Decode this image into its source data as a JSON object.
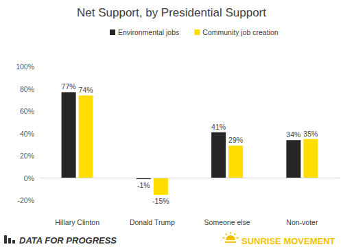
{
  "chart_data": {
    "type": "bar",
    "title": "Net Support, by Presidential Support",
    "categories": [
      "Hillary Clinton",
      "Donald Trump",
      "Someone else",
      "Non-voter"
    ],
    "series": [
      {
        "name": "Environmental jobs",
        "color": "#262626",
        "values": [
          77,
          -1,
          41,
          34
        ],
        "value_labels": [
          "77%",
          "-1%",
          "41%",
          "34%"
        ]
      },
      {
        "name": "Community job creation",
        "color": "#FFDD00",
        "values": [
          74,
          -15,
          29,
          35
        ],
        "value_labels": [
          "74%",
          "-15%",
          "29%",
          "35%"
        ]
      }
    ],
    "ylim": [
      -20,
      100
    ],
    "yticks": [
      {
        "value": -20,
        "label": "-20%"
      },
      {
        "value": 0,
        "label": "0%"
      },
      {
        "value": 20,
        "label": "20%"
      },
      {
        "value": 40,
        "label": "40%"
      },
      {
        "value": 60,
        "label": "60%"
      },
      {
        "value": 80,
        "label": "80%"
      },
      {
        "value": 100,
        "label": "100%"
      }
    ],
    "grid": false,
    "legend": "top",
    "data_labels": true,
    "annotations": [
      "DATA FOR PROGRESS",
      "SUNRISE MOVEMENT"
    ]
  }
}
